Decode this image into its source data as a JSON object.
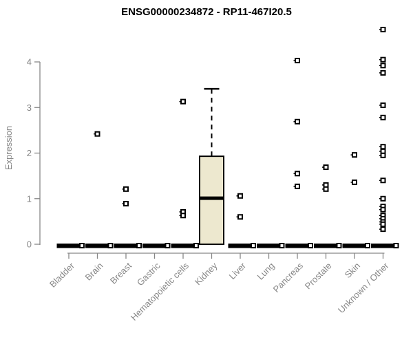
{
  "chart_data": {
    "type": "boxplot",
    "title": "ENSG00000234872 - RP11-467I20.5",
    "ylabel": "Expression",
    "xlabel": "",
    "ylim": [
      0,
      4.8
    ],
    "yticks": [
      0,
      1,
      2,
      3,
      4
    ],
    "grid": false,
    "legend": "none",
    "categories": [
      "Bladder",
      "Brain",
      "Breast",
      "Gastric",
      "Hematopoietic cells",
      "Kidney",
      "Liver",
      "Lung",
      "Pancreas",
      "Prostate",
      "Skin",
      "Unknown / Other"
    ],
    "series": [
      {
        "category": "Bladder",
        "box": {
          "min": 0,
          "q1": 0,
          "median": 0,
          "q3": 0,
          "max": 0
        },
        "outliers": []
      },
      {
        "category": "Brain",
        "box": {
          "min": 0,
          "q1": 0,
          "median": 0,
          "q3": 0,
          "max": 0
        },
        "outliers": [
          2.42
        ]
      },
      {
        "category": "Breast",
        "box": {
          "min": 0,
          "q1": 0,
          "median": 0,
          "q3": 0,
          "max": 0
        },
        "outliers": [
          1.21,
          0.89
        ]
      },
      {
        "category": "Gastric",
        "box": {
          "min": 0,
          "q1": 0,
          "median": 0,
          "q3": 0,
          "max": 0
        },
        "outliers": []
      },
      {
        "category": "Hematopoietic cells",
        "box": {
          "min": 0,
          "q1": 0,
          "median": 0,
          "q3": 0,
          "max": 0
        },
        "outliers": [
          3.13,
          0.71,
          0.63
        ]
      },
      {
        "category": "Kidney",
        "box": {
          "min": 0,
          "q1": 0,
          "median": 1.01,
          "q3": 1.93,
          "max": 3.41
        },
        "outliers": []
      },
      {
        "category": "Liver",
        "box": {
          "min": 0,
          "q1": 0,
          "median": 0,
          "q3": 0,
          "max": 0
        },
        "outliers": [
          1.06,
          0.6
        ]
      },
      {
        "category": "Lung",
        "box": {
          "min": 0,
          "q1": 0,
          "median": 0,
          "q3": 0,
          "max": 0
        },
        "outliers": []
      },
      {
        "category": "Pancreas",
        "box": {
          "min": 0,
          "q1": 0,
          "median": 0,
          "q3": 0,
          "max": 0
        },
        "outliers": [
          4.03,
          2.69,
          1.55,
          1.27
        ]
      },
      {
        "category": "Prostate",
        "box": {
          "min": 0,
          "q1": 0,
          "median": 0,
          "q3": 0,
          "max": 0
        },
        "outliers": [
          1.69,
          1.3,
          1.21
        ]
      },
      {
        "category": "Skin",
        "box": {
          "min": 0,
          "q1": 0,
          "median": 0,
          "q3": 0,
          "max": 0
        },
        "outliers": [
          1.96,
          1.36
        ]
      },
      {
        "category": "Unknown / Other",
        "box": {
          "min": 0,
          "q1": 0,
          "median": 0,
          "q3": 0,
          "max": 0
        },
        "outliers": [
          4.71,
          4.05,
          3.92,
          3.76,
          3.05,
          2.78,
          2.14,
          2.04,
          1.95,
          1.4,
          1.0,
          0.83,
          0.76,
          0.63,
          0.56,
          0.49,
          0.44,
          0.33
        ]
      }
    ],
    "colors": {
      "box_fill": "#EDE8CF",
      "box_border": "#000000",
      "median": "#000000",
      "zero_bar": "#000000",
      "axis": "#878787",
      "tick_text": "#878787",
      "title": "#000000",
      "point_stroke": "#000000",
      "point_fill": "#ffffff",
      "background": "#ffffff"
    }
  }
}
